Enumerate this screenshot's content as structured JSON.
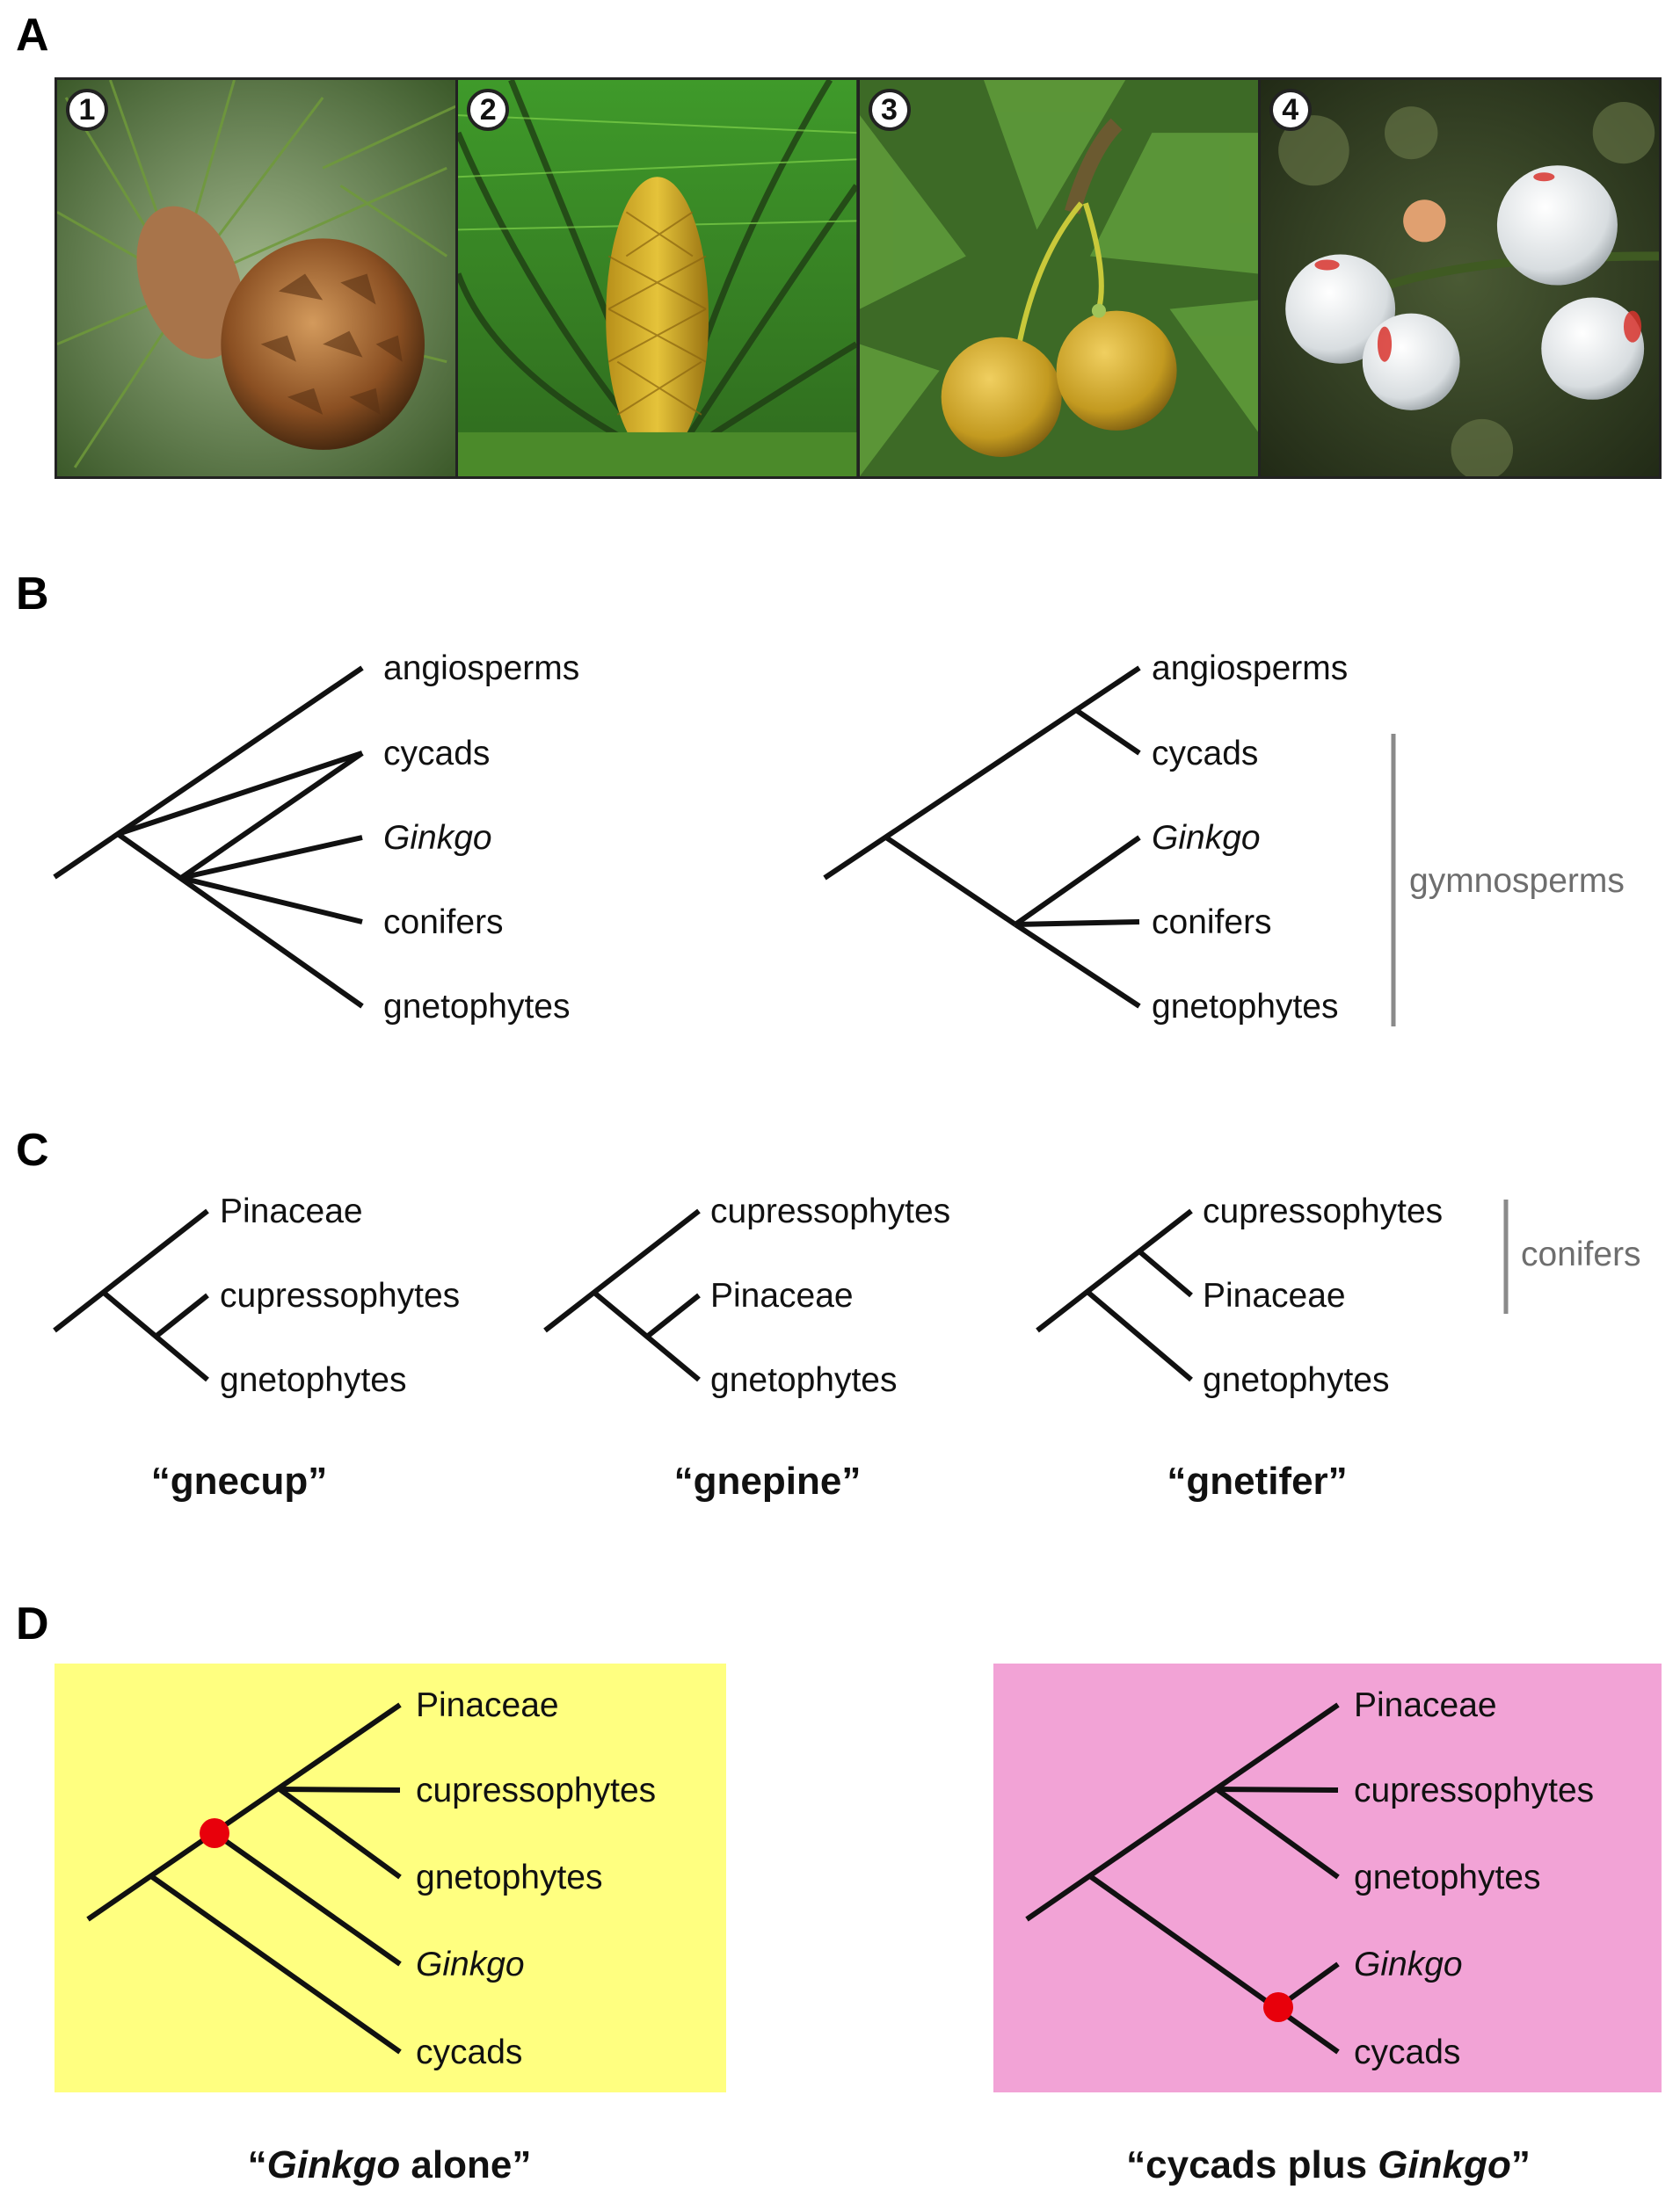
{
  "panels": {
    "a": "A",
    "b": "B",
    "c": "C",
    "d": "D"
  },
  "photos": [
    {
      "number": "1",
      "subject": "pine-cone-photo"
    },
    {
      "number": "2",
      "subject": "cycad-cone-photo"
    },
    {
      "number": "3",
      "subject": "ginkgo-seeds-photo"
    },
    {
      "number": "4",
      "subject": "white-berries-photo"
    }
  ],
  "panel_b": {
    "left_tree": {
      "taxa": [
        "angiosperms",
        "cycads",
        "Ginkgo",
        "conifers",
        "gnetophytes"
      ]
    },
    "right_tree": {
      "taxa": [
        "angiosperms",
        "cycads",
        "Ginkgo",
        "conifers",
        "gnetophytes"
      ]
    },
    "group_label": "gymnosperms"
  },
  "panel_c": {
    "trees": [
      {
        "taxa": [
          "Pinaceae",
          "cupressophytes",
          "gnetophytes"
        ],
        "caption": "“gnecup”"
      },
      {
        "taxa": [
          "cupressophytes",
          "Pinaceae",
          "gnetophytes"
        ],
        "caption": "“gnepine”"
      },
      {
        "taxa": [
          "cupressophytes",
          "Pinaceae",
          "gnetophytes"
        ],
        "caption": "“gnetifer”"
      }
    ],
    "group_label": "conifers"
  },
  "panel_d": {
    "left": {
      "taxa": [
        "Pinaceae",
        "cupressophytes",
        "gnetophytes",
        "Ginkgo",
        "cycads"
      ],
      "caption_parts": [
        "“",
        "Ginkgo",
        " alone”"
      ],
      "background": "#ffff80"
    },
    "right": {
      "taxa": [
        "Pinaceae",
        "cupressophytes",
        "gnetophytes",
        "Ginkgo",
        "cycads"
      ],
      "caption_parts": [
        "“cycads plus ",
        "Ginkgo",
        "”"
      ],
      "background": "#f2a3d6"
    },
    "marker_color": "#e8000b"
  }
}
